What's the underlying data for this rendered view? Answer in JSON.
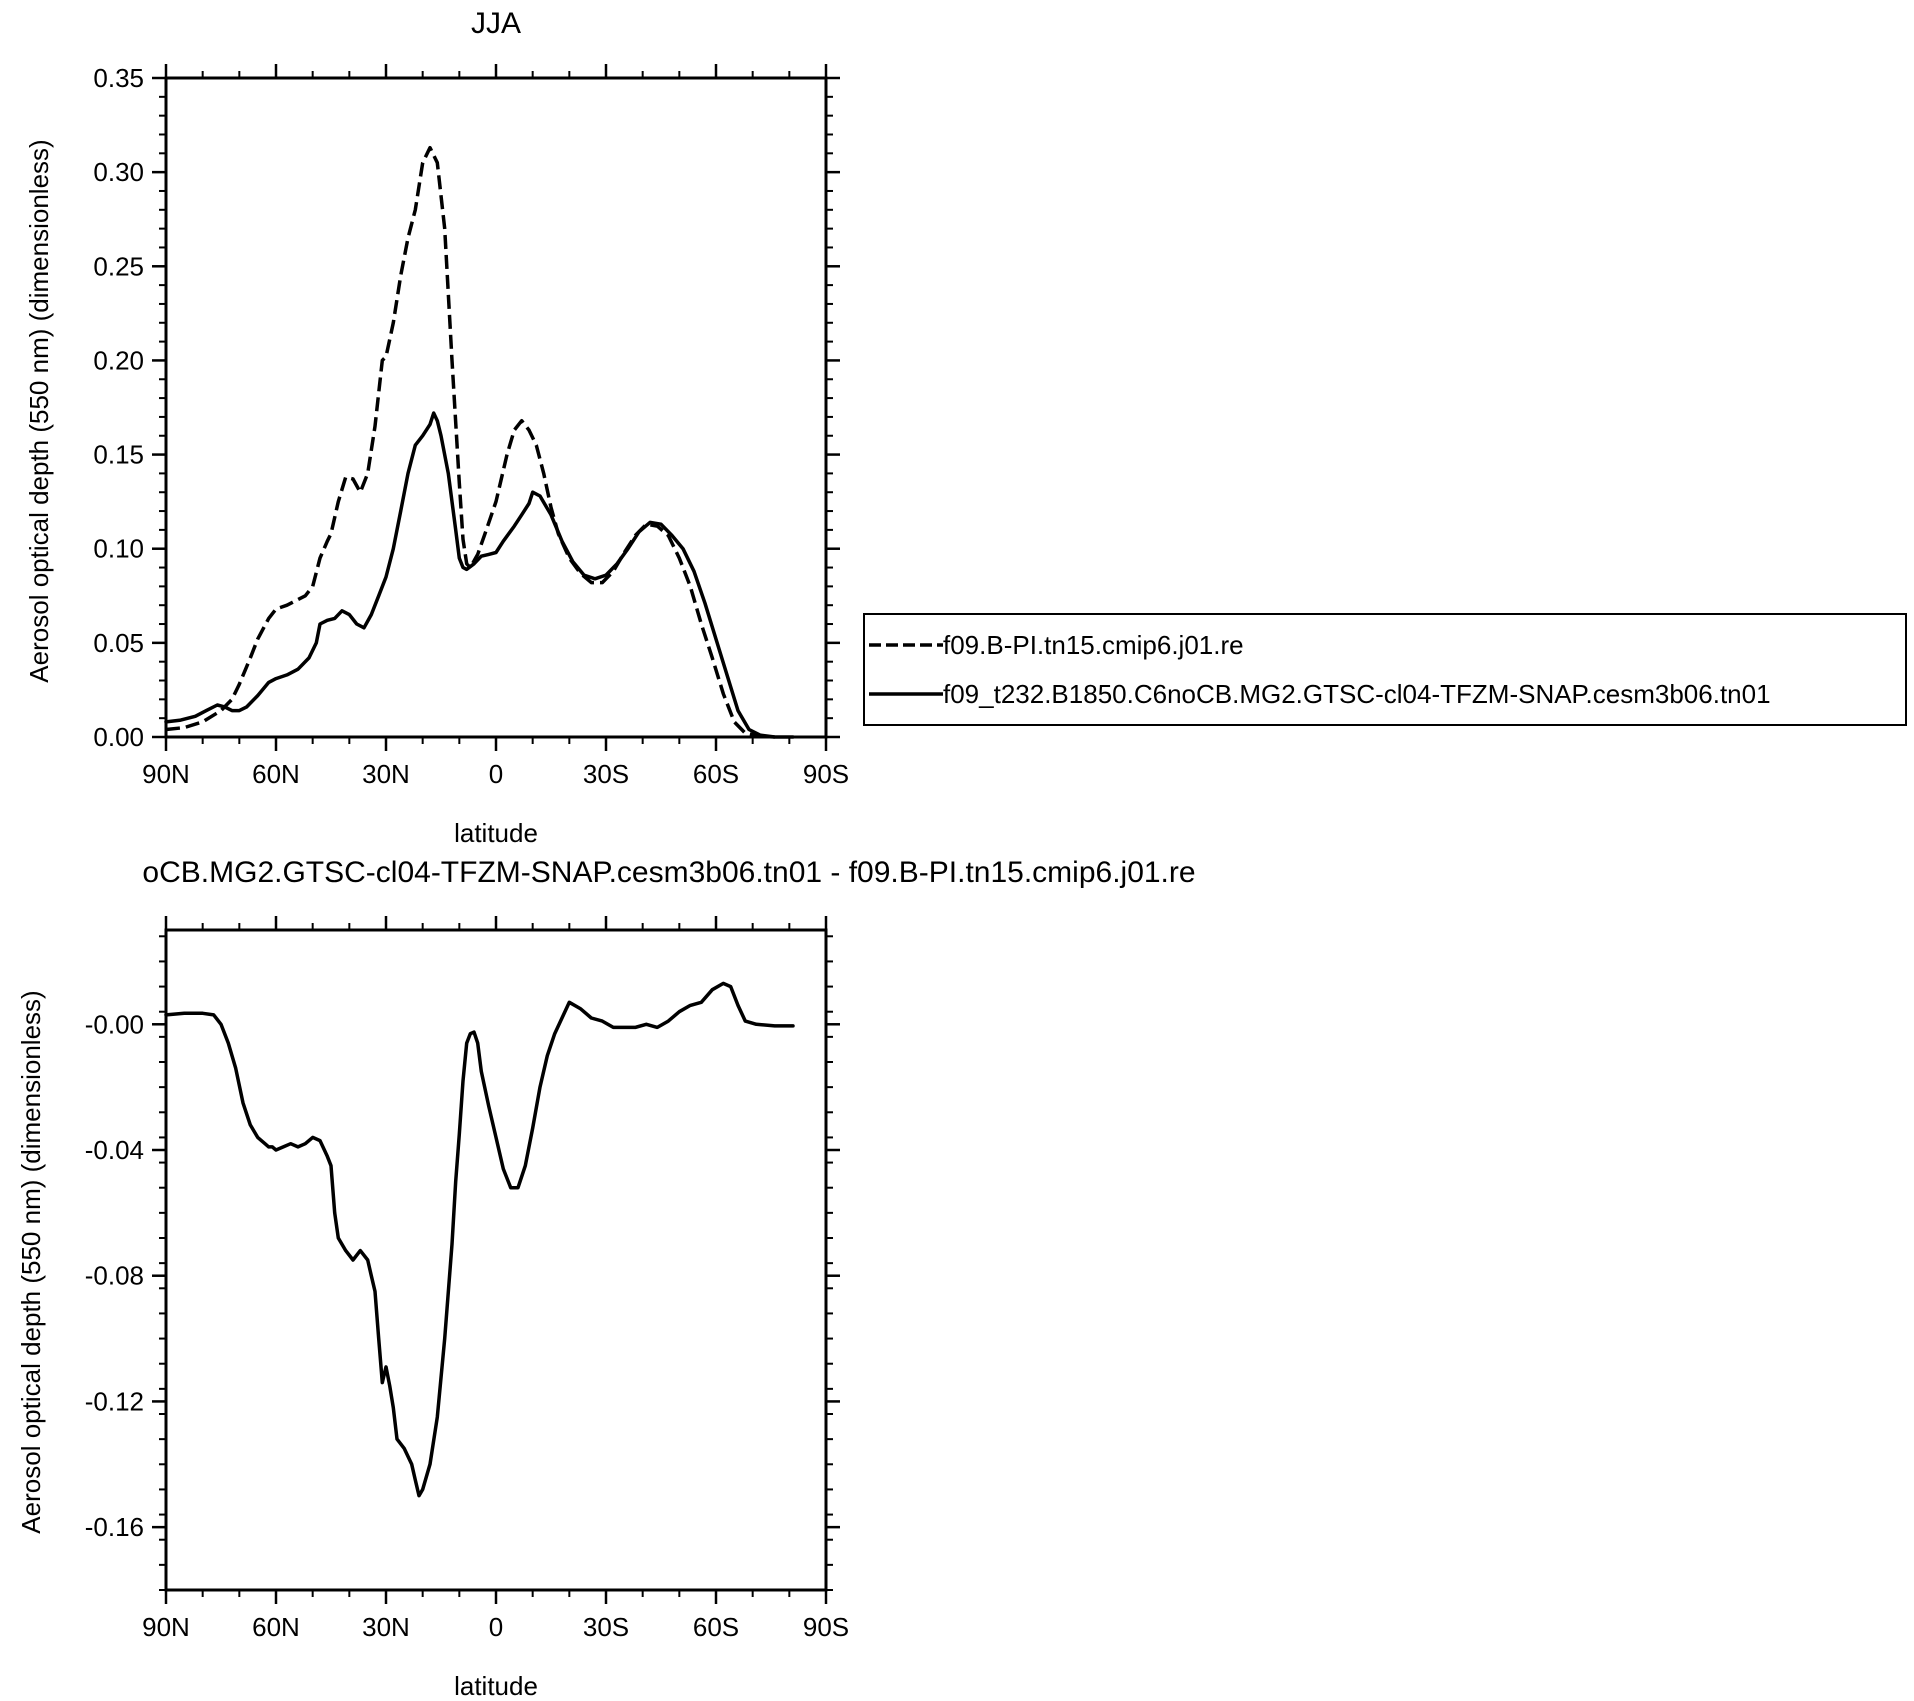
{
  "chart_data": [
    {
      "type": "line",
      "title": "JJA",
      "xlabel": "latitude",
      "ylabel": "Aerosol optical depth (550 nm) (dimensionless)",
      "xlim": [
        90,
        -90
      ],
      "ylim": [
        0,
        0.35
      ],
      "xticks": [
        {
          "value": 90,
          "label": "90N"
        },
        {
          "value": 60,
          "label": "60N"
        },
        {
          "value": 30,
          "label": "30N"
        },
        {
          "value": 0,
          "label": "0"
        },
        {
          "value": -30,
          "label": "30S"
        },
        {
          "value": -60,
          "label": "60S"
        },
        {
          "value": -90,
          "label": "90S"
        }
      ],
      "yticks": [
        {
          "value": 0.0,
          "label": "0.00"
        },
        {
          "value": 0.05,
          "label": "0.05"
        },
        {
          "value": 0.1,
          "label": "0.10"
        },
        {
          "value": 0.15,
          "label": "0.15"
        },
        {
          "value": 0.2,
          "label": "0.20"
        },
        {
          "value": 0.25,
          "label": "0.25"
        },
        {
          "value": 0.3,
          "label": "0.30"
        },
        {
          "value": 0.35,
          "label": "0.35"
        }
      ],
      "grid": false,
      "legend": {
        "placement": "right",
        "entries": [
          {
            "name": "f09.B-PI.tn15.cmip6.j01.re",
            "style": "dashed"
          },
          {
            "name": "f09_t232.B1850.C6noCB.MG2.GTSC-cl04-TFZM-SNAP.cesm3b06.tn01",
            "style": "solid"
          }
        ]
      },
      "series": [
        {
          "name": "f09.B-PI.tn15.cmip6.j01.re",
          "style": "dashed",
          "color": "#000000",
          "points": [
            [
              90,
              0.004
            ],
            [
              85,
              0.005
            ],
            [
              80,
              0.008
            ],
            [
              75,
              0.014
            ],
            [
              72,
              0.02
            ],
            [
              70,
              0.028
            ],
            [
              67,
              0.042
            ],
            [
              65,
              0.052
            ],
            [
              62,
              0.063
            ],
            [
              60,
              0.068
            ],
            [
              57,
              0.07
            ],
            [
              55,
              0.072
            ],
            [
              52,
              0.075
            ],
            [
              50,
              0.08
            ],
            [
              48,
              0.095
            ],
            [
              46,
              0.104
            ],
            [
              45,
              0.108
            ],
            [
              43,
              0.125
            ],
            [
              41,
              0.138
            ],
            [
              39,
              0.137
            ],
            [
              37,
              0.13
            ],
            [
              35,
              0.14
            ],
            [
              33,
              0.165
            ],
            [
              31,
              0.2
            ],
            [
              30,
              0.202
            ],
            [
              28,
              0.22
            ],
            [
              26,
              0.245
            ],
            [
              24,
              0.265
            ],
            [
              22,
              0.28
            ],
            [
              20,
              0.305
            ],
            [
              18,
              0.313
            ],
            [
              16,
              0.305
            ],
            [
              14,
              0.27
            ],
            [
              12,
              0.2
            ],
            [
              10,
              0.135
            ],
            [
              9,
              0.105
            ],
            [
              8,
              0.092
            ],
            [
              7,
              0.09
            ],
            [
              5,
              0.097
            ],
            [
              3,
              0.108
            ],
            [
              0,
              0.125
            ],
            [
              -3,
              0.15
            ],
            [
              -5,
              0.163
            ],
            [
              -7,
              0.168
            ],
            [
              -9,
              0.163
            ],
            [
              -11,
              0.155
            ],
            [
              -13,
              0.14
            ],
            [
              -15,
              0.122
            ],
            [
              -17,
              0.108
            ],
            [
              -20,
              0.095
            ],
            [
              -23,
              0.087
            ],
            [
              -26,
              0.082
            ],
            [
              -29,
              0.082
            ],
            [
              -32,
              0.088
            ],
            [
              -35,
              0.098
            ],
            [
              -38,
              0.107
            ],
            [
              -41,
              0.113
            ],
            [
              -44,
              0.112
            ],
            [
              -47,
              0.107
            ],
            [
              -50,
              0.095
            ],
            [
              -53,
              0.08
            ],
            [
              -56,
              0.06
            ],
            [
              -59,
              0.042
            ],
            [
              -62,
              0.023
            ],
            [
              -65,
              0.008
            ],
            [
              -68,
              0.002
            ],
            [
              -72,
              0.0005
            ],
            [
              -76,
              0.0
            ]
          ]
        },
        {
          "name": "f09_t232.B1850.C6noCB.MG2.GTSC-cl04-TFZM-SNAP.cesm3b06.tn01",
          "style": "solid",
          "color": "#000000",
          "points": [
            [
              90,
              0.008
            ],
            [
              86,
              0.009
            ],
            [
              82,
              0.011
            ],
            [
              79,
              0.014
            ],
            [
              76,
              0.017
            ],
            [
              74,
              0.016
            ],
            [
              72,
              0.014
            ],
            [
              70,
              0.014
            ],
            [
              68,
              0.016
            ],
            [
              65,
              0.022
            ],
            [
              62,
              0.029
            ],
            [
              60,
              0.031
            ],
            [
              57,
              0.033
            ],
            [
              54,
              0.036
            ],
            [
              51,
              0.042
            ],
            [
              49,
              0.05
            ],
            [
              48,
              0.06
            ],
            [
              46,
              0.062
            ],
            [
              44,
              0.063
            ],
            [
              42,
              0.067
            ],
            [
              40,
              0.065
            ],
            [
              38,
              0.06
            ],
            [
              36,
              0.058
            ],
            [
              34,
              0.065
            ],
            [
              32,
              0.075
            ],
            [
              30,
              0.085
            ],
            [
              28,
              0.1
            ],
            [
              26,
              0.12
            ],
            [
              24,
              0.14
            ],
            [
              22,
              0.155
            ],
            [
              20,
              0.16
            ],
            [
              18,
              0.166
            ],
            [
              17,
              0.172
            ],
            [
              16,
              0.168
            ],
            [
              15,
              0.16
            ],
            [
              13,
              0.14
            ],
            [
              11,
              0.11
            ],
            [
              10,
              0.095
            ],
            [
              9,
              0.09
            ],
            [
              8,
              0.089
            ],
            [
              6,
              0.092
            ],
            [
              4,
              0.096
            ],
            [
              2,
              0.097
            ],
            [
              0,
              0.098
            ],
            [
              -2,
              0.104
            ],
            [
              -5,
              0.112
            ],
            [
              -7,
              0.118
            ],
            [
              -9,
              0.124
            ],
            [
              -10,
              0.13
            ],
            [
              -12,
              0.128
            ],
            [
              -15,
              0.118
            ],
            [
              -18,
              0.104
            ],
            [
              -21,
              0.093
            ],
            [
              -24,
              0.086
            ],
            [
              -27,
              0.084
            ],
            [
              -30,
              0.086
            ],
            [
              -33,
              0.092
            ],
            [
              -36,
              0.1
            ],
            [
              -39,
              0.109
            ],
            [
              -42,
              0.114
            ],
            [
              -45,
              0.113
            ],
            [
              -48,
              0.107
            ],
            [
              -51,
              0.1
            ],
            [
              -54,
              0.088
            ],
            [
              -57,
              0.071
            ],
            [
              -60,
              0.052
            ],
            [
              -63,
              0.033
            ],
            [
              -66,
              0.014
            ],
            [
              -69,
              0.004
            ],
            [
              -72,
              0.001
            ],
            [
              -76,
              0.0
            ],
            [
              -81,
              0.0
            ]
          ]
        }
      ]
    },
    {
      "type": "line",
      "title": "oCB.MG2.GTSC-cl04-TFZM-SNAP.cesm3b06.tn01 - f09.B-PI.tn15.cmip6.j01.re",
      "xlabel": "latitude",
      "ylabel": "Aerosol optical depth (550 nm) (dimensionless)",
      "xlim": [
        90,
        -90
      ],
      "ylim": [
        -0.18,
        0.03
      ],
      "xticks": [
        {
          "value": 90,
          "label": "90N"
        },
        {
          "value": 60,
          "label": "60N"
        },
        {
          "value": 30,
          "label": "30N"
        },
        {
          "value": 0,
          "label": "0"
        },
        {
          "value": -30,
          "label": "30S"
        },
        {
          "value": -60,
          "label": "60S"
        },
        {
          "value": -90,
          "label": "90S"
        }
      ],
      "yticks": [
        {
          "value": -0.16,
          "label": "-0.16"
        },
        {
          "value": -0.12,
          "label": "-0.12"
        },
        {
          "value": -0.08,
          "label": "-0.08"
        },
        {
          "value": -0.04,
          "label": "-0.04"
        },
        {
          "value": 0.0,
          "label": "-0.00"
        }
      ],
      "grid": false,
      "series": [
        {
          "style": "solid",
          "color": "#000000",
          "points": [
            [
              90,
              0.003
            ],
            [
              85,
              0.0035
            ],
            [
              80,
              0.0035
            ],
            [
              77,
              0.003
            ],
            [
              75,
              0.0
            ],
            [
              73,
              -0.006
            ],
            [
              71,
              -0.014
            ],
            [
              69,
              -0.025
            ],
            [
              67,
              -0.032
            ],
            [
              65,
              -0.036
            ],
            [
              63,
              -0.038
            ],
            [
              62,
              -0.039
            ],
            [
              61,
              -0.039
            ],
            [
              60,
              -0.04
            ],
            [
              58,
              -0.039
            ],
            [
              56,
              -0.038
            ],
            [
              54,
              -0.039
            ],
            [
              52,
              -0.038
            ],
            [
              50,
              -0.036
            ],
            [
              48,
              -0.037
            ],
            [
              46,
              -0.042
            ],
            [
              45,
              -0.045
            ],
            [
              44,
              -0.06
            ],
            [
              43,
              -0.068
            ],
            [
              41,
              -0.072
            ],
            [
              39,
              -0.075
            ],
            [
              37,
              -0.072
            ],
            [
              35,
              -0.075
            ],
            [
              34,
              -0.08
            ],
            [
              33,
              -0.085
            ],
            [
              32,
              -0.1
            ],
            [
              31,
              -0.114
            ],
            [
              30,
              -0.109
            ],
            [
              29,
              -0.115
            ],
            [
              28,
              -0.122
            ],
            [
              27,
              -0.132
            ],
            [
              25,
              -0.135
            ],
            [
              23,
              -0.14
            ],
            [
              22,
              -0.145
            ],
            [
              21,
              -0.15
            ],
            [
              20,
              -0.148
            ],
            [
              18,
              -0.14
            ],
            [
              16,
              -0.125
            ],
            [
              14,
              -0.1
            ],
            [
              12,
              -0.07
            ],
            [
              11,
              -0.05
            ],
            [
              10,
              -0.035
            ],
            [
              9,
              -0.018
            ],
            [
              8,
              -0.006
            ],
            [
              7,
              -0.003
            ],
            [
              6,
              -0.0025
            ],
            [
              5,
              -0.006
            ],
            [
              4,
              -0.015
            ],
            [
              2,
              -0.026
            ],
            [
              0,
              -0.036
            ],
            [
              -2,
              -0.046
            ],
            [
              -4,
              -0.052
            ],
            [
              -6,
              -0.052
            ],
            [
              -8,
              -0.045
            ],
            [
              -10,
              -0.033
            ],
            [
              -12,
              -0.02
            ],
            [
              -14,
              -0.01
            ],
            [
              -16,
              -0.003
            ],
            [
              -18,
              0.002
            ],
            [
              -20,
              0.007
            ],
            [
              -23,
              0.005
            ],
            [
              -26,
              0.002
            ],
            [
              -29,
              0.001
            ],
            [
              -32,
              -0.001
            ],
            [
              -35,
              -0.001
            ],
            [
              -38,
              -0.001
            ],
            [
              -41,
              0.0
            ],
            [
              -44,
              -0.001
            ],
            [
              -47,
              0.001
            ],
            [
              -50,
              0.004
            ],
            [
              -53,
              0.006
            ],
            [
              -56,
              0.007
            ],
            [
              -59,
              0.011
            ],
            [
              -62,
              0.013
            ],
            [
              -64,
              0.012
            ],
            [
              -66,
              0.006
            ],
            [
              -68,
              0.001
            ],
            [
              -71,
              0.0
            ],
            [
              -76,
              -0.0005
            ],
            [
              -81,
              -0.0005
            ]
          ]
        }
      ]
    }
  ]
}
